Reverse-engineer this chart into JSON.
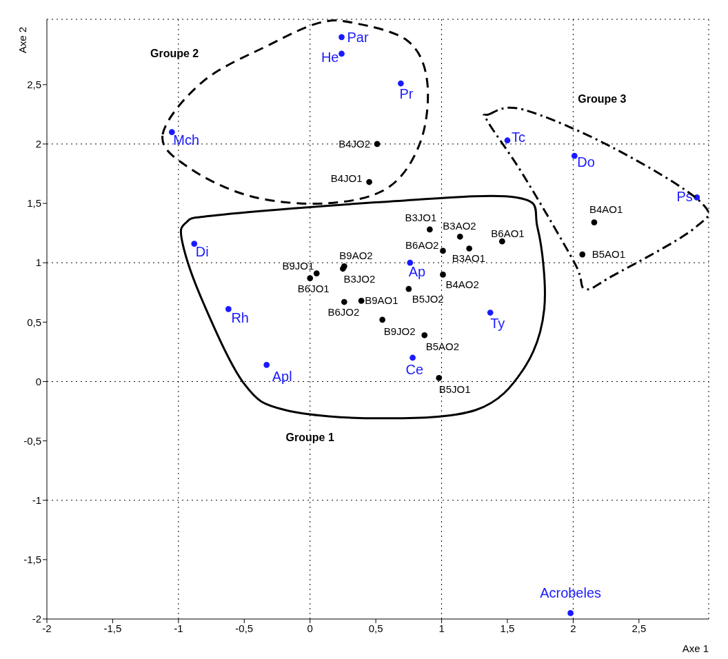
{
  "chart_data": {
    "type": "scatter",
    "xlabel": "Axe 1",
    "ylabel": "Axe 2",
    "xlim": [
      -2,
      3.03
    ],
    "ylim": [
      -2,
      3.05
    ],
    "xticks": [
      -2,
      {
        "value": -1.5,
        "label": "-1,5"
      },
      -1,
      {
        "value": -0.5,
        "label": "-0,5"
      },
      0,
      {
        "value": 0.5,
        "label": "0,5"
      },
      1,
      {
        "value": 1.5,
        "label": "1,5"
      },
      2,
      {
        "value": 2.5,
        "label": "2,5"
      }
    ],
    "yticks": [
      -2,
      {
        "value": -1.5,
        "label": "-1,5"
      },
      -1,
      {
        "value": -0.5,
        "label": "-0,5"
      },
      0,
      {
        "value": 0.5,
        "label": "0,5"
      },
      1,
      {
        "value": 1.5,
        "label": "1,5"
      },
      2,
      {
        "value": 2.5,
        "label": "2,5"
      }
    ],
    "grid": true,
    "marker": "circle",
    "legend": false,
    "series": [
      {
        "color": "#1a1aff",
        "x": [
          0.24,
          0.24,
          0.69,
          -1.05,
          1.5,
          2.01,
          2.94,
          -0.88,
          0.76,
          -0.62,
          1.37,
          -0.33,
          0.78,
          1.98
        ],
        "values": [
          2.9,
          2.76,
          2.51,
          2.1,
          2.03,
          1.9,
          1.55,
          1.16,
          1.0,
          0.61,
          0.58,
          0.14,
          0.2,
          -1.95
        ],
        "value_labels": [
          "Par",
          "He",
          "Pr",
          "Mch",
          "Tc",
          "Do",
          "Ps",
          "Di",
          "Ap",
          "Rh",
          "Ty",
          "Apl",
          "Ce",
          "Acrobeles"
        ]
      },
      {
        "color": "#000000",
        "x": [
          0.51,
          0.45,
          0.91,
          1.14,
          1.46,
          1.01,
          1.21,
          0.26,
          0.05,
          0.0,
          1.01,
          0.25,
          0.75,
          0.26,
          0.39,
          0.55,
          0.87,
          0.98,
          2.16,
          2.07
        ],
        "values": [
          2.0,
          1.68,
          1.28,
          1.22,
          1.18,
          1.1,
          1.12,
          0.97,
          0.91,
          0.87,
          0.9,
          0.95,
          0.78,
          0.67,
          0.68,
          0.52,
          0.39,
          0.03,
          1.34,
          1.07
        ],
        "value_labels": [
          "B4JO2",
          "B4JO1",
          "B3JO1",
          "B3AO2",
          "B6AO1",
          "B6AO2",
          "B3AO1",
          "B9AO2",
          "B9JO1",
          "B6JO1",
          "B4AO2",
          "B3JO2",
          "B5JO2",
          "B6JO2",
          "B9AO1",
          "B9JO2",
          "B5AO2",
          "B5JO1",
          "B4AO1",
          "B5AO1"
        ]
      }
    ],
    "annotations": [
      "Groupe 2",
      "Groupe 1",
      "Groupe 3"
    ]
  }
}
